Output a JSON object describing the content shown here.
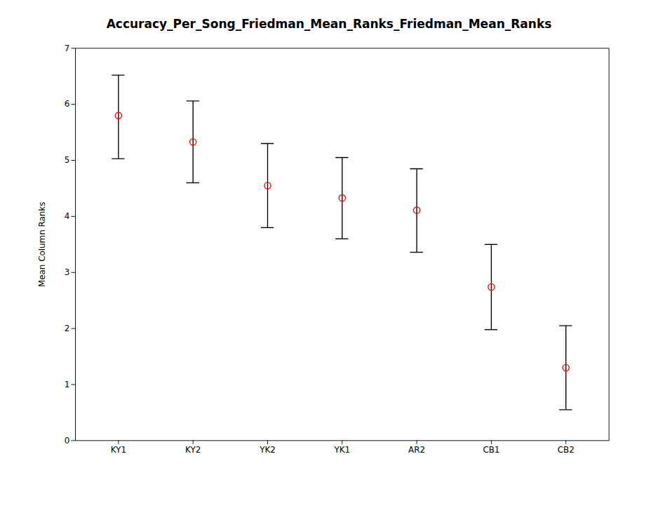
{
  "chart_data": {
    "type": "errorbar",
    "title": "Accuracy_Per_Song_Friedman_Mean_Ranks_Friedman_Mean_Ranks",
    "ylabel": "Mean Column Ranks",
    "categories": [
      "KY1",
      "KY2",
      "YK2",
      "YK1",
      "AR2",
      "CB1",
      "CB2"
    ],
    "values": [
      5.8,
      5.33,
      4.55,
      4.33,
      4.11,
      2.74,
      1.3
    ],
    "upper": [
      6.52,
      6.06,
      5.3,
      5.05,
      4.85,
      3.5,
      2.05
    ],
    "lower": [
      5.03,
      4.6,
      3.8,
      3.6,
      3.36,
      1.98,
      0.55
    ],
    "ylim": [
      0,
      7
    ],
    "yticks": [
      0,
      1,
      2,
      3,
      4,
      5,
      6,
      7
    ],
    "grid": false,
    "marker": "circle"
  }
}
